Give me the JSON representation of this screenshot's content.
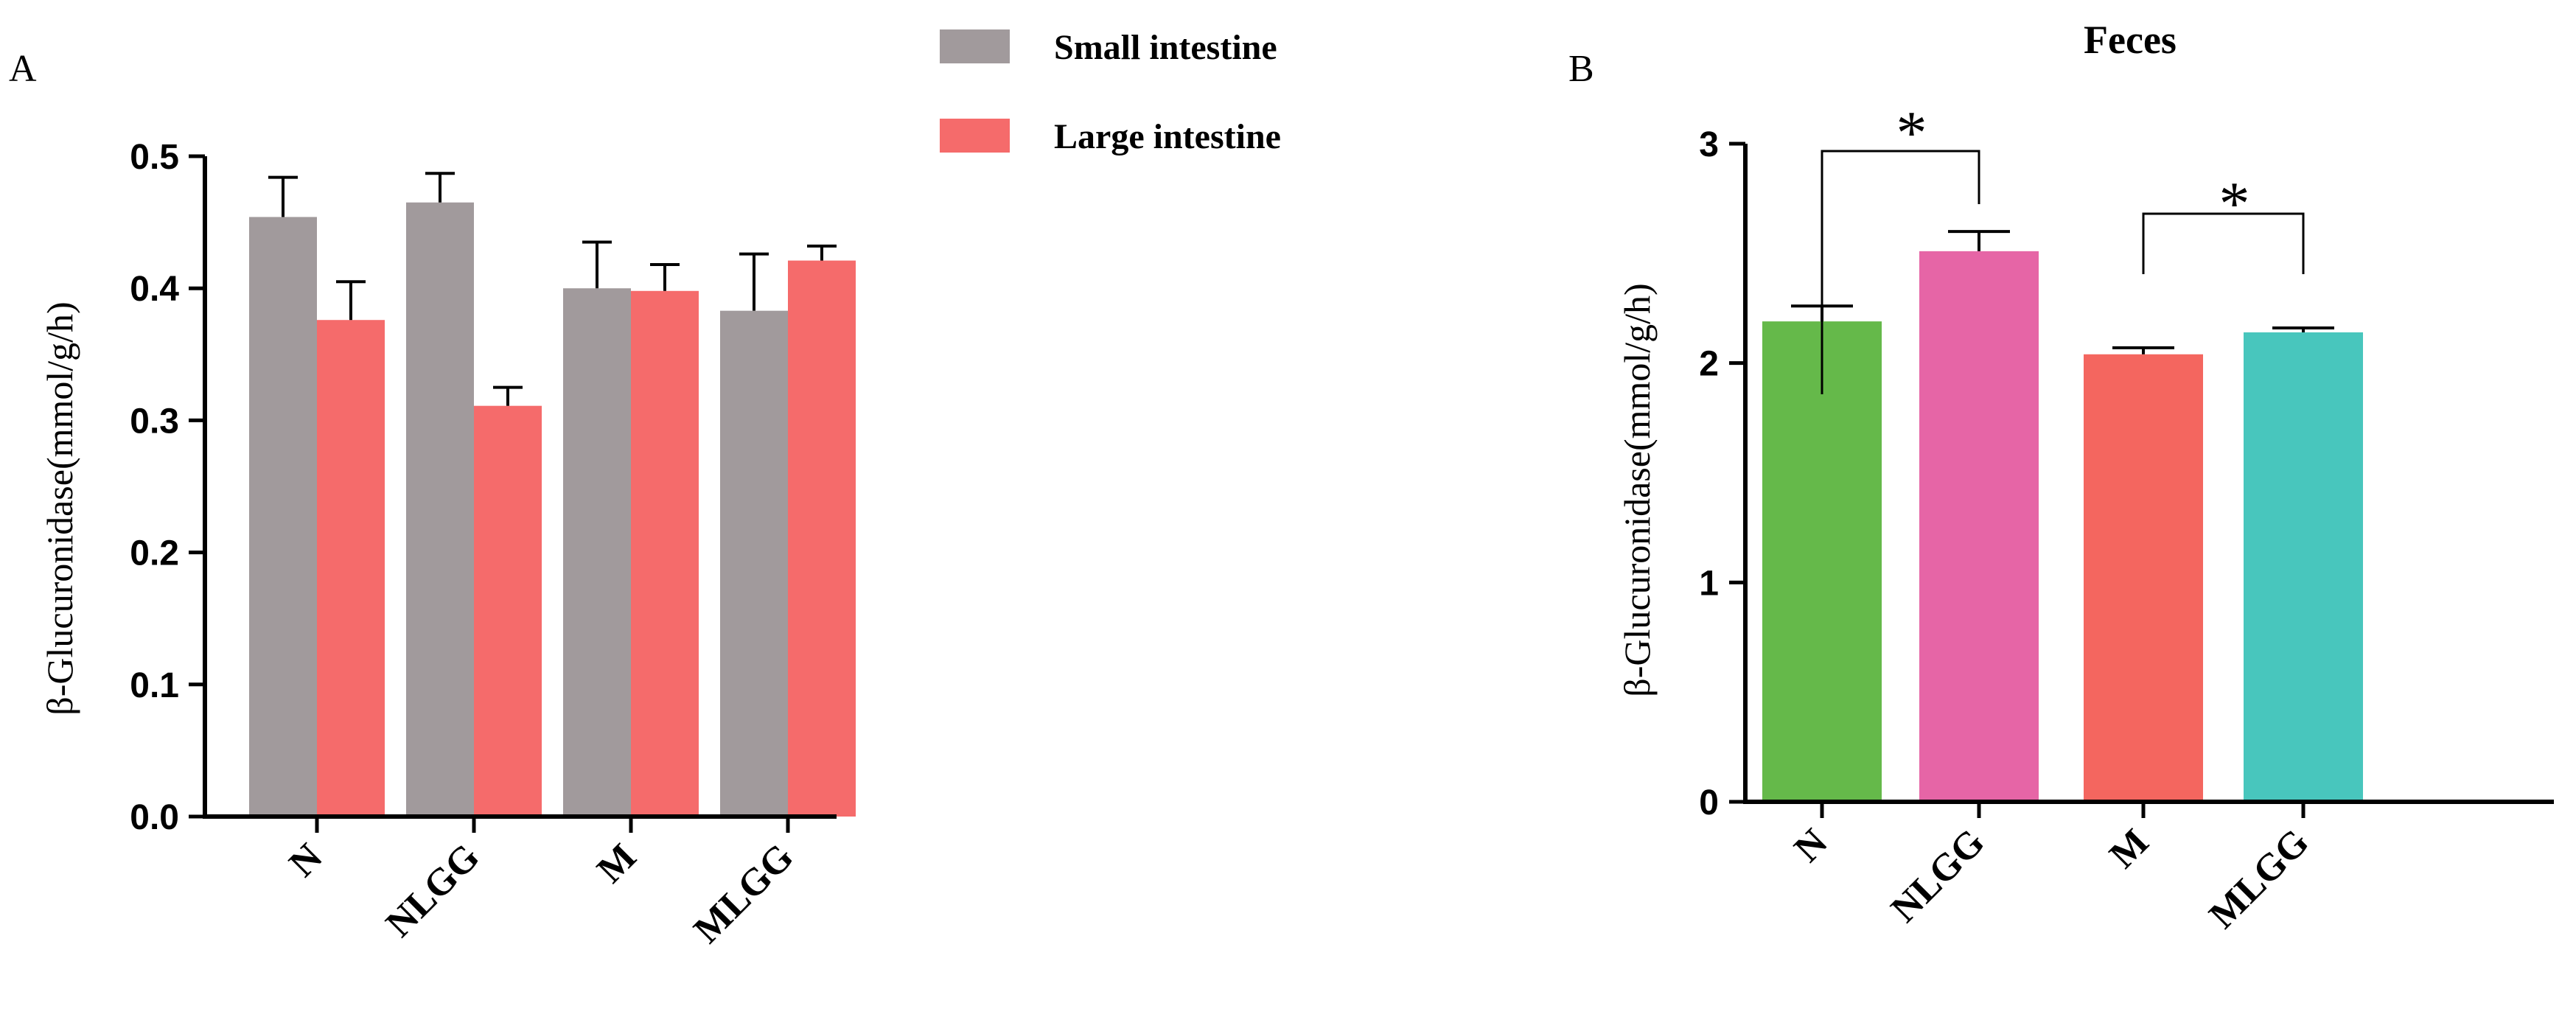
{
  "chart_data": [
    {
      "panel": "A",
      "type": "bar",
      "title": "",
      "xlabel": "",
      "ylabel": "β-Glucuronidase(mmol/g/h)",
      "categories": [
        "N",
        "NLGG",
        "M",
        "MLGG"
      ],
      "ylim": [
        0,
        0.5
      ],
      "yticks": [
        "0.0",
        "0.1",
        "0.2",
        "0.3",
        "0.4",
        "0.5"
      ],
      "legend_position": "top-right",
      "series": [
        {
          "name": "Small intestine",
          "color": "#a19a9c",
          "values": [
            0.454,
            0.465,
            0.4,
            0.383
          ],
          "errors": [
            0.03,
            0.022,
            0.035,
            0.043
          ]
        },
        {
          "name": "Large intestine",
          "color": "#f56b6b",
          "values": [
            0.376,
            0.311,
            0.398,
            0.421
          ],
          "errors": [
            0.029,
            0.014,
            0.02,
            0.011
          ]
        }
      ]
    },
    {
      "panel": "B",
      "type": "bar",
      "title": "Feces",
      "xlabel": "",
      "ylabel": "β-Glucuronidase(mmol/g/h)",
      "categories": [
        "N",
        "NLGG",
        "M",
        "MLGG"
      ],
      "ylim": [
        0,
        3
      ],
      "yticks": [
        "0",
        "1",
        "2",
        "3"
      ],
      "values": [
        2.19,
        2.51,
        2.04,
        2.14
      ],
      "errors": [
        0.07,
        0.09,
        0.03,
        0.02
      ],
      "colors": [
        "#65b94a",
        "#e665a6",
        "#f4665f",
        "#48c6bd"
      ],
      "significance": [
        {
          "from": "N",
          "to": "NLGG",
          "label": "*"
        },
        {
          "from": "M",
          "to": "MLGG",
          "label": "*"
        }
      ]
    }
  ]
}
